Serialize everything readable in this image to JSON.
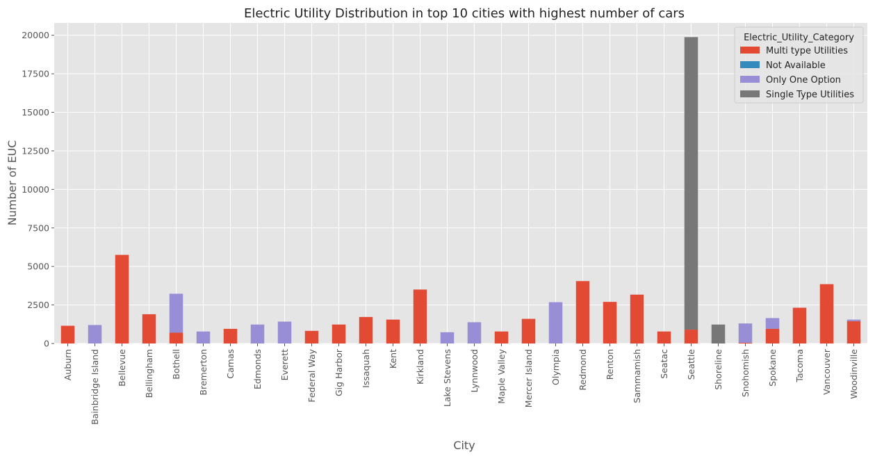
{
  "chart_data": {
    "type": "bar",
    "stacked": true,
    "title": "Electric Utility Distribution in top 10 cities with highest number of cars",
    "xlabel": "City",
    "ylabel": "Number of EUC",
    "ylim": [
      0,
      20800
    ],
    "yticks": [
      0,
      2500,
      5000,
      7500,
      10000,
      12500,
      15000,
      17500,
      20000
    ],
    "grid": true,
    "legend": {
      "title": "Electric_Utility_Category",
      "placement": "top-right"
    },
    "categories": [
      "Auburn",
      "Bainbridge Island",
      "Bellevue",
      "Bellingham",
      "Bothell",
      "Bremerton",
      "Camas",
      "Edmonds",
      "Everett",
      "Federal Way",
      "Gig Harbor",
      "Issaquah",
      "Kent",
      "Kirkland",
      "Lake Stevens",
      "Lynnwood",
      "Maple Valley",
      "Mercer Island",
      "Olympia",
      "Redmond",
      "Renton",
      "Sammamish",
      "Seatac",
      "Seattle",
      "Shoreline",
      "Snohomish",
      "Spokane",
      "Tacoma",
      "Vancouver",
      "Woodinville"
    ],
    "series": [
      {
        "name": "Multi type Utilities",
        "color": "#E24A33",
        "values": [
          1150,
          0,
          5750,
          1900,
          700,
          0,
          950,
          0,
          0,
          820,
          1230,
          1720,
          1550,
          3500,
          0,
          0,
          780,
          1600,
          0,
          4050,
          2700,
          3170,
          780,
          900,
          0,
          50,
          950,
          2320,
          3850,
          1450
        ]
      },
      {
        "name": "Not Available",
        "color": "#348ABD",
        "values": [
          0,
          0,
          0,
          0,
          0,
          0,
          0,
          0,
          0,
          0,
          0,
          0,
          0,
          0,
          0,
          0,
          0,
          0,
          0,
          0,
          0,
          0,
          0,
          0,
          0,
          0,
          0,
          0,
          0,
          0
        ]
      },
      {
        "name": "Only One Option",
        "color": "#988ED5",
        "values": [
          0,
          1200,
          0,
          0,
          2530,
          780,
          0,
          1230,
          1420,
          0,
          0,
          0,
          0,
          0,
          730,
          1380,
          0,
          0,
          2680,
          0,
          0,
          0,
          0,
          0,
          0,
          1250,
          700,
          0,
          0,
          100
        ]
      },
      {
        "name": "Single Type Utilities",
        "color": "#777777",
        "values": [
          0,
          0,
          0,
          0,
          0,
          0,
          0,
          0,
          0,
          0,
          0,
          0,
          0,
          0,
          0,
          0,
          0,
          0,
          0,
          0,
          0,
          0,
          0,
          18980,
          1230,
          0,
          0,
          0,
          0,
          0
        ]
      }
    ]
  }
}
